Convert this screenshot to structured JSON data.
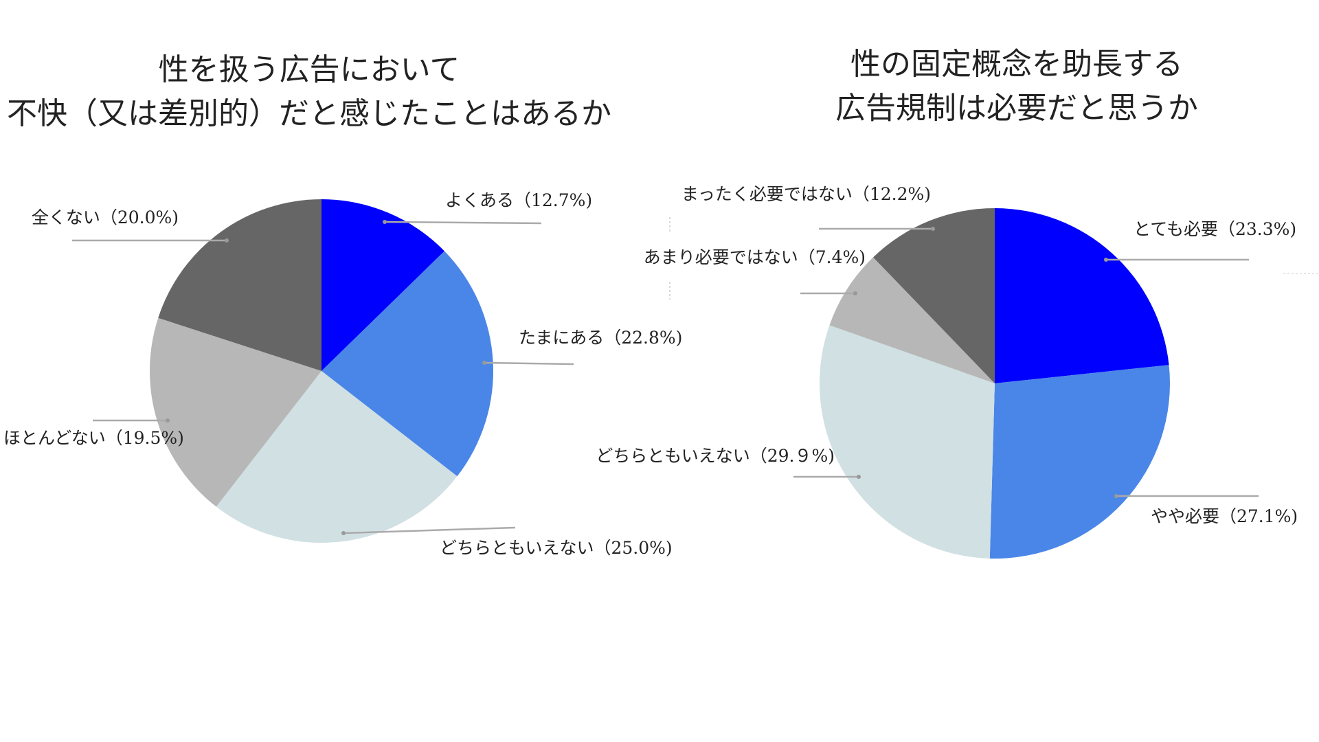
{
  "chart_data": [
    {
      "type": "pie",
      "title": [
        "性を扱う広告において",
        "不快（又は差別的）だと感じたことはあるか"
      ],
      "slices": [
        {
          "label": "よくある（12.7%)",
          "value": 12.7,
          "color": "#0000ff"
        },
        {
          "label": "たまにある（22.8%)",
          "value": 22.8,
          "color": "#4a86e8"
        },
        {
          "label": "どちらともいえない（25.0%)",
          "value": 25.0,
          "color": "#d0e0e3"
        },
        {
          "label": "ほとんどない（19.5%)",
          "value": 19.5,
          "color": "#b7b7b7"
        },
        {
          "label": "全くない（20.0%)",
          "value": 20.0,
          "color": "#666666"
        }
      ]
    },
    {
      "type": "pie",
      "title": [
        "性の固定概念を助長する",
        "広告規制は必要だと思うか"
      ],
      "slices": [
        {
          "label": "とても必要（23.3%)",
          "value": 23.3,
          "color": "#0000ff"
        },
        {
          "label": "やや必要（27.1%)",
          "value": 27.1,
          "color": "#4a86e8"
        },
        {
          "label": "どちらともいえない（29.９%)",
          "value": 29.9,
          "color": "#d0e0e3"
        },
        {
          "label": "あまり必要ではない（7.4%)",
          "value": 7.4,
          "color": "#b7b7b7"
        },
        {
          "label": "まったく必要ではない（12.2%)",
          "value": 12.2,
          "color": "#666666"
        }
      ]
    }
  ]
}
